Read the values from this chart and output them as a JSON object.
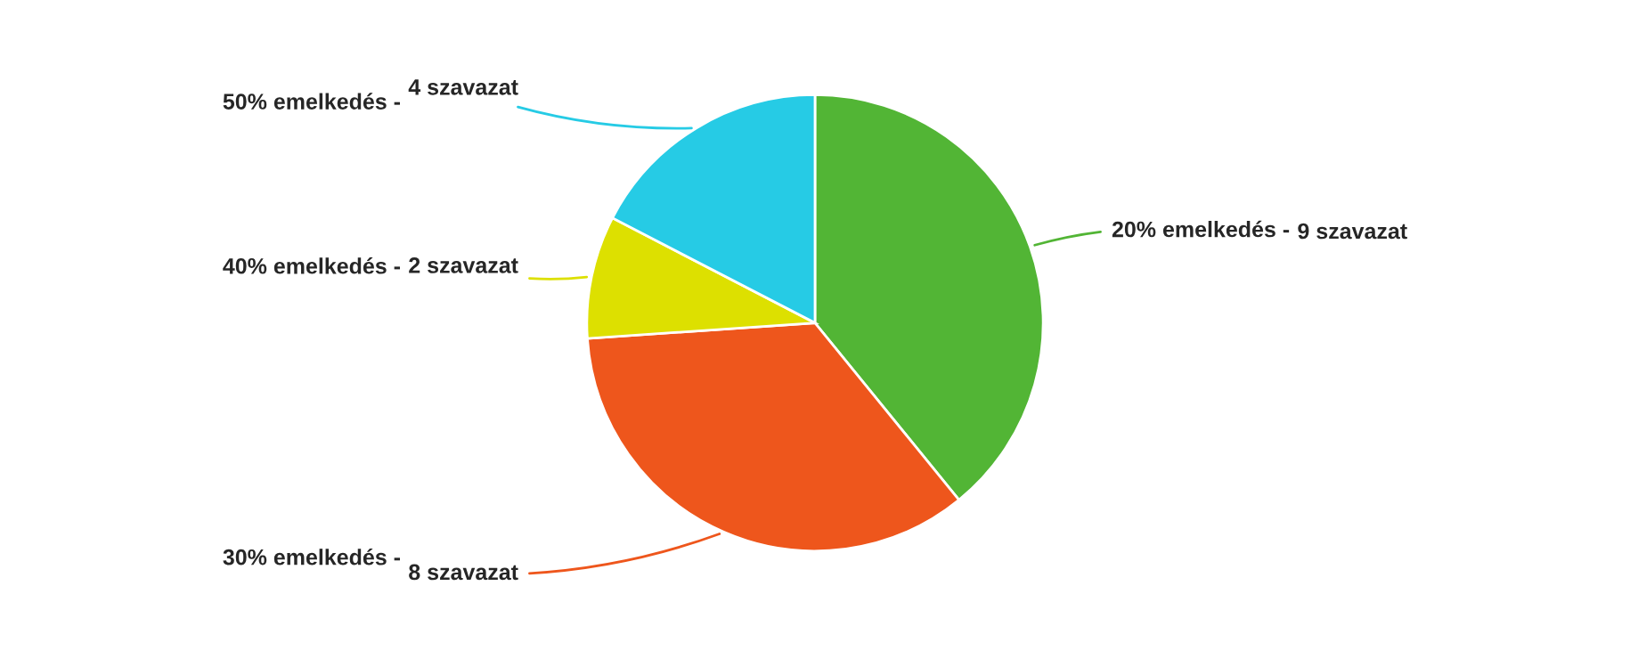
{
  "chart_data": {
    "type": "pie",
    "categories": [
      "20% emelkedés -",
      "30% emelkedés -",
      "40% emelkedés -",
      "50% emelkedés -"
    ],
    "values": [
      9,
      8,
      2,
      4
    ],
    "value_labels": [
      "9 szavazat",
      "8 szavazat",
      "2 szavazat",
      "4 szavazat"
    ],
    "colors": [
      "#52b535",
      "#ee561c",
      "#dde000",
      "#26cbe5"
    ]
  }
}
